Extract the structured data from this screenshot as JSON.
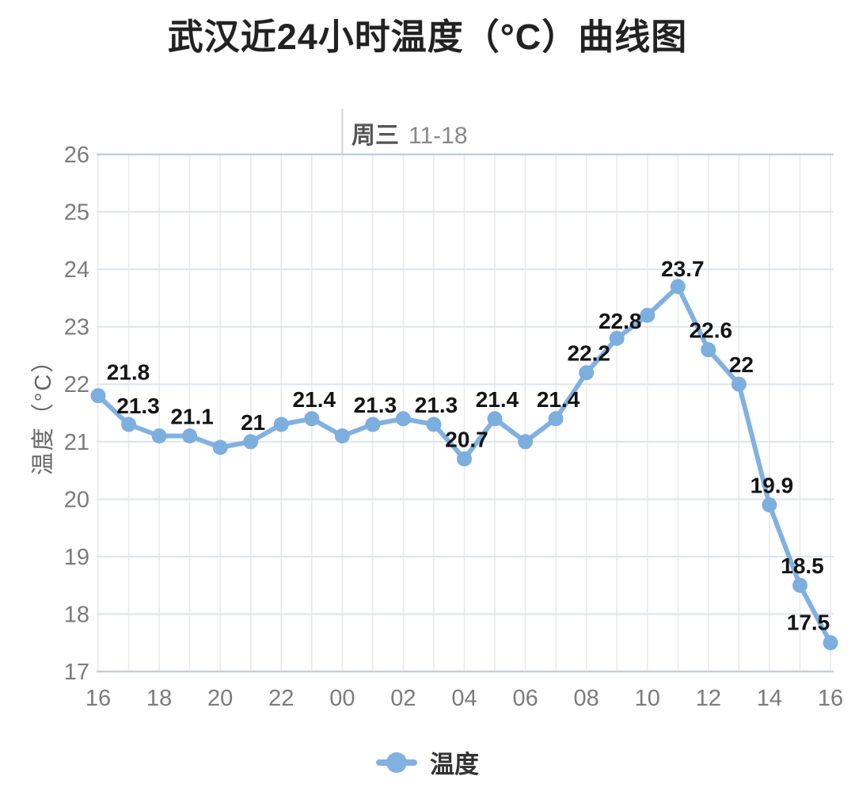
{
  "header": {
    "title": "武汉近24小时温度（°C）曲线图"
  },
  "day_marker": {
    "weekday": "周三",
    "date": "11-18"
  },
  "chart_data": {
    "type": "line",
    "title": "武汉近24小时温度（°C）曲线图",
    "xlabel": "",
    "ylabel": "温度（°C）",
    "ylim": [
      17,
      26
    ],
    "y_ticks": [
      26,
      25,
      24,
      23,
      22,
      21,
      20,
      19,
      18,
      17
    ],
    "x": [
      "16",
      "17",
      "18",
      "19",
      "20",
      "21",
      "22",
      "23",
      "00",
      "01",
      "02",
      "03",
      "04",
      "05",
      "06",
      "07",
      "08",
      "09",
      "10",
      "11",
      "12",
      "13",
      "14",
      "15",
      "16"
    ],
    "x_tick_labels": [
      "16",
      "18",
      "20",
      "22",
      "00",
      "02",
      "04",
      "06",
      "08",
      "10",
      "12",
      "14",
      "16"
    ],
    "grid": "on",
    "legend_position": "bottom",
    "day_separator": {
      "x_index": 8,
      "weekday": "周三",
      "date": "11-18"
    },
    "series": [
      {
        "name": "温度",
        "values": [
          21.8,
          21.3,
          21.1,
          21.1,
          20.9,
          21,
          21.3,
          21.4,
          21.1,
          21.3,
          21.4,
          21.3,
          20.7,
          21.4,
          21,
          21.4,
          22.2,
          22.8,
          23.2,
          23.7,
          22.6,
          22,
          19.9,
          18.5,
          17.5
        ],
        "point_labels": [
          "21.8",
          "21.3",
          "",
          "21.1",
          "",
          "21",
          "",
          "21.4",
          "",
          "21.3",
          "",
          "21.3",
          "20.7",
          "21.4",
          "",
          "21.4",
          "22.2",
          "22.8",
          "",
          "23.7",
          "22.6",
          "22",
          "19.9",
          "18.5",
          "17.5"
        ]
      }
    ]
  },
  "legend": {
    "items": [
      {
        "label": "温度"
      }
    ]
  },
  "colors": {
    "line": "#82b1e1",
    "point": "#7caede",
    "data_label": "#141414",
    "axis_text": "#7b7b7b",
    "grid_vertical": "#e7eaee",
    "grid_horizontal": "#e0e4e9",
    "axis_border": "#c6cfd7",
    "separator_line": "#d2d2d2",
    "title_text": "#222222",
    "legend_text": "#333333",
    "background": "#ffffff"
  }
}
